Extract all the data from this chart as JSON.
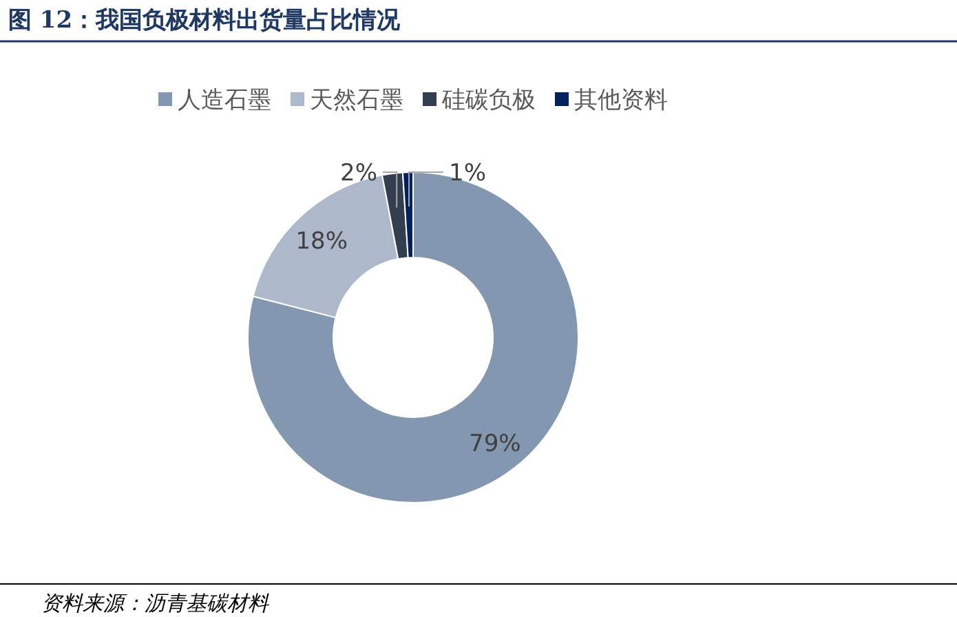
{
  "chart_data": {
    "type": "donut",
    "title": "图 12：我国负极材料出货量占比情况",
    "categories": [
      "人造石墨",
      "天然石墨",
      "硅碳负极",
      "其他资料"
    ],
    "values": [
      79,
      18,
      2,
      1
    ],
    "colors": [
      "#8497b0",
      "#adb9ca",
      "#333f50",
      "#002060"
    ],
    "value_labels": [
      "79%",
      "18%",
      "2%",
      "1%"
    ],
    "legend": "top",
    "annotations": [
      "资料来源：沥青基碳材料"
    ]
  }
}
